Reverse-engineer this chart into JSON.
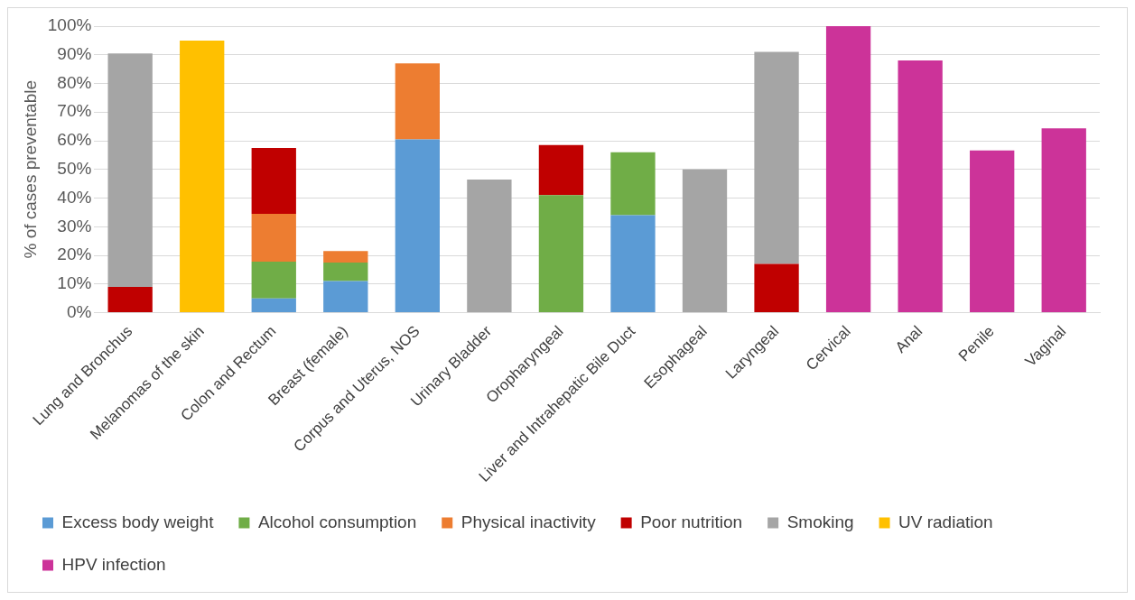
{
  "chart_data": {
    "type": "bar",
    "stacked": true,
    "ylabel": "% of cases preventable",
    "categories": [
      "Lung and Bronchus",
      "Melanomas of the skin",
      "Colon and Rectum",
      "Breast (female)",
      "Corpus and Uterus, NOS",
      "Urinary Bladder",
      "Oropharyngeal",
      "Liver and Intrahepatic Bile Duct",
      "Esophageal",
      "Laryngeal",
      "Cervical",
      "Anal",
      "Penile",
      "Vaginal"
    ],
    "series": [
      {
        "name": "Excess body weight",
        "color": "#5b9bd5",
        "values": [
          null,
          null,
          5,
          11,
          60.5,
          null,
          null,
          34,
          null,
          null,
          null,
          null,
          null,
          null
        ]
      },
      {
        "name": "Alcohol consumption",
        "color": "#70ad47",
        "values": [
          null,
          null,
          12.8,
          6.5,
          null,
          null,
          41,
          22,
          null,
          null,
          null,
          null,
          null,
          null
        ]
      },
      {
        "name": "Physical inactivity",
        "color": "#ed7d31",
        "values": [
          null,
          null,
          16.7,
          4,
          26.5,
          null,
          null,
          null,
          null,
          null,
          null,
          null,
          null,
          null
        ]
      },
      {
        "name": "Poor nutrition",
        "color": "#c00000",
        "values": [
          9,
          null,
          23,
          null,
          null,
          null,
          17.5,
          null,
          null,
          17,
          null,
          null,
          null,
          null
        ]
      },
      {
        "name": "Smoking",
        "color": "#a5a5a5",
        "values": [
          81.5,
          null,
          null,
          null,
          null,
          46.5,
          null,
          null,
          50,
          74,
          null,
          null,
          null,
          null
        ]
      },
      {
        "name": "UV radiation",
        "color": "#ffc000",
        "values": [
          null,
          95,
          null,
          null,
          null,
          null,
          null,
          null,
          null,
          null,
          null,
          null,
          null,
          null
        ]
      },
      {
        "name": "HPV infection",
        "color": "#cc3399",
        "values": [
          null,
          null,
          null,
          null,
          null,
          null,
          null,
          null,
          null,
          null,
          100,
          88,
          56.6,
          64.3
        ]
      }
    ],
    "ylim": [
      0,
      100
    ],
    "yticks": [
      {
        "value": 0,
        "label": "0%"
      },
      {
        "value": 10,
        "label": "10%"
      },
      {
        "value": 20,
        "label": "20%"
      },
      {
        "value": 30,
        "label": "30%"
      },
      {
        "value": 40,
        "label": "40%"
      },
      {
        "value": 50,
        "label": "50%"
      },
      {
        "value": 60,
        "label": "60%"
      },
      {
        "value": 70,
        "label": "70%"
      },
      {
        "value": 80,
        "label": "80%"
      },
      {
        "value": 90,
        "label": "90%"
      },
      {
        "value": 100,
        "label": "100%"
      }
    ],
    "grid": "y",
    "legend": "bottom"
  }
}
